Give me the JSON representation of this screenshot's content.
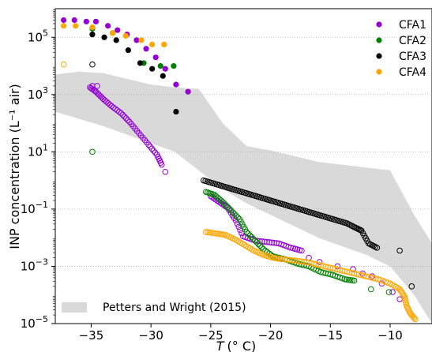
{
  "chart_data": {
    "type": "scatter",
    "xlabel_var": "T",
    "xlabel_unit": "(° C)",
    "ylabel": "INP concentration (L⁻¹ air)",
    "xlim": [
      -38,
      -6.5
    ],
    "ylim_log10": [
      -5,
      6
    ],
    "y_scale": "log",
    "x_ticks": [
      -35,
      -30,
      -25,
      -20,
      -15,
      -10
    ],
    "y_ticks_exp": [
      -5,
      -3,
      -1,
      1,
      3,
      5
    ],
    "grid": "horizontal dotted at major y ticks",
    "legend_position": "top-right",
    "colors": {
      "CFA1": "#9400d3",
      "CFA2": "#008000",
      "CFA3": "#000000",
      "CFA4": "#ffa500",
      "band": "#d9d9d9"
    },
    "band": {
      "name": "Petters and Wright (2015)",
      "x": [
        -38,
        -36,
        -34,
        -32,
        -30,
        -28,
        -26,
        -24,
        -22,
        -20,
        -18,
        -16,
        -14,
        -12,
        -10,
        -8,
        -6.5
      ],
      "upper_log10": [
        3.7,
        3.8,
        3.75,
        3.55,
        3.35,
        3.25,
        3.2,
        2.0,
        1.2,
        1.05,
        0.85,
        0.65,
        0.55,
        0.45,
        0.35,
        -1.2,
        -2.2
      ],
      "lower_log10": [
        2.4,
        2.15,
        1.9,
        1.6,
        1.3,
        1.0,
        0.35,
        -0.3,
        -0.8,
        -1.2,
        -1.6,
        -2.0,
        -2.3,
        -2.6,
        -3.0,
        -4.0,
        -5.0
      ]
    },
    "series": [
      {
        "name": "CFA1",
        "filled": [
          [
            -37.3,
            5.6
          ],
          [
            -36.4,
            5.6
          ],
          [
            -35.4,
            5.55
          ],
          [
            -34.6,
            5.55
          ],
          [
            -33.6,
            5.4
          ],
          [
            -32.8,
            5.25
          ],
          [
            -32.0,
            5.1
          ],
          [
            -31.2,
            4.9
          ],
          [
            -30.4,
            4.6
          ],
          [
            -29.6,
            4.3
          ],
          [
            -28.8,
            3.9
          ],
          [
            -27.9,
            3.35
          ],
          [
            -26.9,
            3.1
          ]
        ],
        "open": [
          [
            -34.9,
            3.3
          ],
          [
            -34.5,
            3.3
          ]
        ],
        "open_curve": [
          [
            -35.1,
            3.25
          ],
          [
            -34.6,
            3.1
          ],
          [
            -34.0,
            2.85
          ],
          [
            -33.3,
            2.6
          ],
          [
            -32.5,
            2.35
          ],
          [
            -31.8,
            2.05
          ],
          [
            -31.0,
            1.65
          ],
          [
            -30.2,
            1.25
          ],
          [
            -29.5,
            0.9
          ],
          [
            -29.1,
            0.55
          ]
        ],
        "open_extra": [
          [
            -28.8,
            0.3
          ]
        ],
        "open_curve2": [
          [
            -25.0,
            -0.55
          ],
          [
            -24.3,
            -0.75
          ],
          [
            -23.6,
            -0.95
          ],
          [
            -22.9,
            -1.4
          ],
          [
            -22.3,
            -1.95
          ],
          [
            -21.3,
            -2.1
          ],
          [
            -20.3,
            -2.15
          ],
          [
            -19.3,
            -2.2
          ],
          [
            -18.3,
            -2.35
          ],
          [
            -17.4,
            -2.45
          ]
        ],
        "open_extra2": [
          [
            -16.8,
            -2.7
          ],
          [
            -15.9,
            -2.85
          ],
          [
            -14.4,
            -3.0
          ],
          [
            -13.1,
            -3.1
          ],
          [
            -12.3,
            -3.25
          ],
          [
            -11.5,
            -3.35
          ],
          [
            -10.7,
            -3.6
          ],
          [
            -9.8,
            -3.9
          ],
          [
            -9.2,
            -4.15
          ]
        ]
      },
      {
        "name": "CFA2",
        "filled": [
          [
            -34.9,
            5.3
          ],
          [
            -33.2,
            5.15
          ],
          [
            -30.6,
            4.1
          ],
          [
            -29.2,
            4.0
          ],
          [
            -28.1,
            4.0
          ]
        ],
        "open": [
          [
            -34.9,
            1.0
          ]
        ],
        "open_curve": [
          [
            -25.4,
            -0.4
          ],
          [
            -24.7,
            -0.5
          ],
          [
            -24.0,
            -0.75
          ],
          [
            -23.3,
            -1.05
          ],
          [
            -22.6,
            -1.35
          ],
          [
            -22.0,
            -1.8
          ],
          [
            -21.3,
            -2.1
          ],
          [
            -20.6,
            -2.4
          ],
          [
            -19.8,
            -2.65
          ],
          [
            -18.8,
            -2.75
          ],
          [
            -17.8,
            -2.9
          ],
          [
            -16.8,
            -3.0
          ],
          [
            -15.8,
            -3.2
          ],
          [
            -14.8,
            -3.3
          ],
          [
            -13.8,
            -3.45
          ],
          [
            -13.0,
            -3.5
          ]
        ],
        "open_extra": [
          [
            -11.6,
            -3.8
          ],
          [
            -10.1,
            -3.9
          ]
        ]
      },
      {
        "name": "CFA3",
        "filled": [
          [
            -34.9,
            5.1
          ],
          [
            -33.9,
            5.0
          ],
          [
            -32.9,
            4.9
          ],
          [
            -31.9,
            4.55
          ],
          [
            -30.9,
            4.1
          ],
          [
            -29.9,
            3.9
          ],
          [
            -29.0,
            3.65
          ],
          [
            -27.9,
            2.4
          ]
        ],
        "open": [
          [
            -34.9,
            4.05
          ]
        ],
        "open_curve": [
          [
            -25.6,
            0.0
          ],
          [
            -24.8,
            -0.1
          ],
          [
            -24.0,
            -0.2
          ],
          [
            -23.2,
            -0.3
          ],
          [
            -22.4,
            -0.4
          ],
          [
            -21.6,
            -0.5
          ],
          [
            -20.8,
            -0.6
          ],
          [
            -20.0,
            -0.7
          ],
          [
            -19.2,
            -0.8
          ],
          [
            -18.4,
            -0.9
          ],
          [
            -17.6,
            -1.0
          ],
          [
            -16.8,
            -1.1
          ],
          [
            -16.0,
            -1.2
          ],
          [
            -15.2,
            -1.3
          ],
          [
            -14.4,
            -1.4
          ],
          [
            -13.6,
            -1.5
          ],
          [
            -12.9,
            -1.65
          ],
          [
            -12.4,
            -1.75
          ],
          [
            -11.8,
            -2.2
          ],
          [
            -11.1,
            -2.35
          ]
        ],
        "open_extra": [
          [
            -9.2,
            -2.45
          ],
          [
            -8.2,
            -3.7
          ]
        ]
      },
      {
        "name": "CFA4",
        "filled": [
          [
            -37.3,
            5.4
          ],
          [
            -36.3,
            5.4
          ],
          [
            -34.9,
            5.35
          ],
          [
            -33.2,
            5.15
          ],
          [
            -32.1,
            5.05
          ],
          [
            -30.8,
            4.9
          ],
          [
            -29.9,
            4.75
          ],
          [
            -28.9,
            4.75
          ]
        ],
        "open": [
          [
            -37.3,
            4.05
          ]
        ],
        "open_curve": [
          [
            -25.4,
            -1.8
          ],
          [
            -24.6,
            -1.85
          ],
          [
            -23.8,
            -1.9
          ],
          [
            -23.0,
            -2.05
          ],
          [
            -22.2,
            -2.25
          ],
          [
            -21.4,
            -2.45
          ],
          [
            -20.6,
            -2.6
          ],
          [
            -19.8,
            -2.7
          ],
          [
            -19.0,
            -2.75
          ],
          [
            -18.0,
            -2.8
          ],
          [
            -17.0,
            -2.85
          ],
          [
            -16.0,
            -2.95
          ],
          [
            -15.0,
            -3.05
          ],
          [
            -14.0,
            -3.15
          ],
          [
            -13.0,
            -3.25
          ],
          [
            -12.0,
            -3.35
          ],
          [
            -11.0,
            -3.45
          ],
          [
            -10.0,
            -3.6
          ],
          [
            -9.2,
            -3.8
          ],
          [
            -8.8,
            -4.05
          ],
          [
            -8.6,
            -4.4
          ],
          [
            -8.3,
            -4.65
          ],
          [
            -7.9,
            -4.85
          ]
        ]
      }
    ]
  }
}
